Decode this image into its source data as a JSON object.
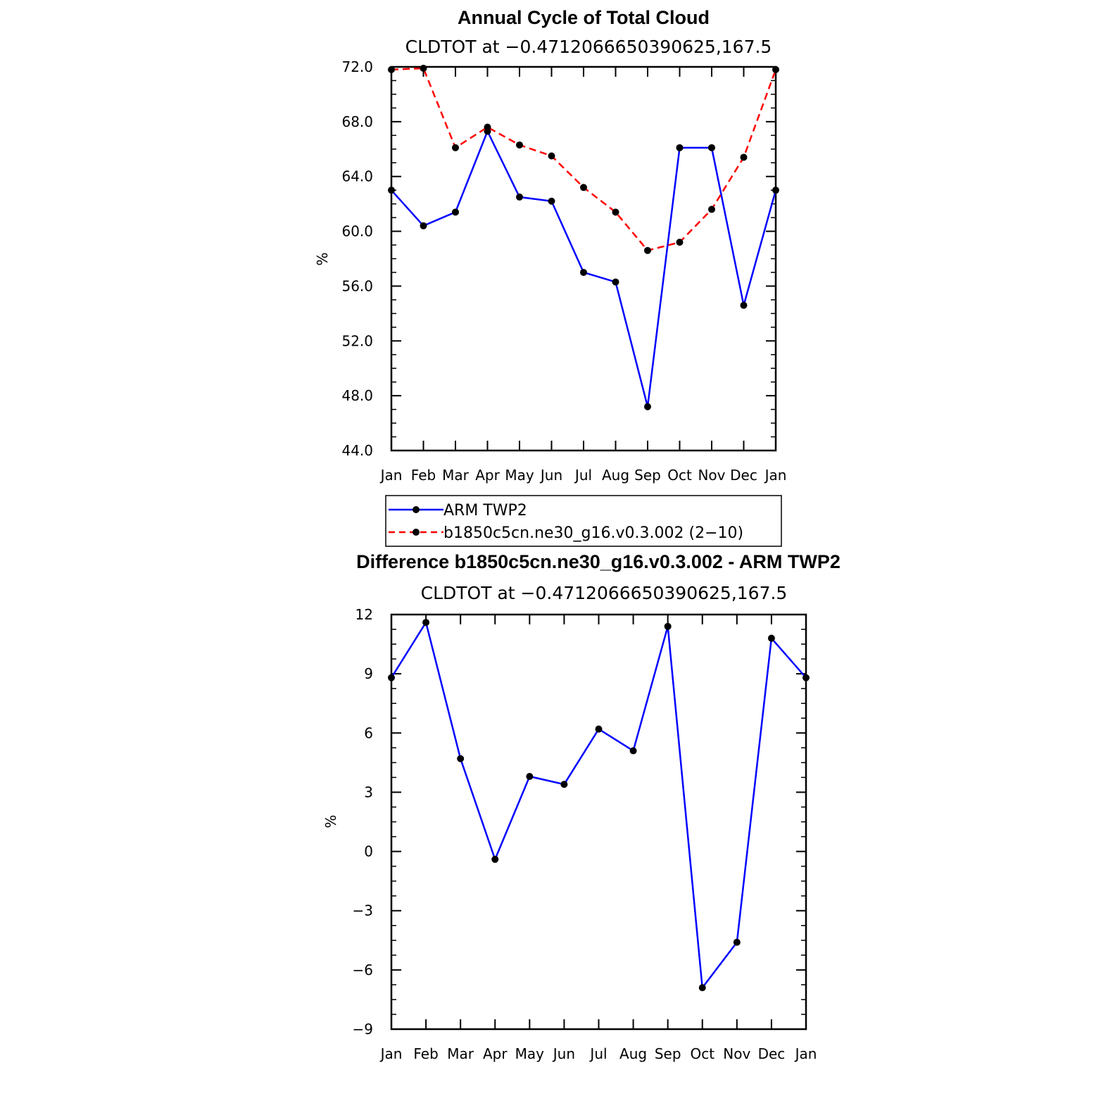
{
  "chart_data": [
    {
      "type": "line",
      "title": "Annual Cycle of Total Cloud",
      "subtitle": "CLDTOT at −0.4712066650390625,167.5",
      "ylabel": "%",
      "xlabel": "",
      "categories": [
        "Jan",
        "Feb",
        "Mar",
        "Apr",
        "May",
        "Jun",
        "Jul",
        "Aug",
        "Sep",
        "Oct",
        "Nov",
        "Dec",
        "Jan"
      ],
      "ylim": [
        44,
        72
      ],
      "yticks": [
        44,
        48,
        52,
        56,
        60,
        64,
        68,
        72
      ],
      "ytick_labels": [
        "44.0",
        "48.0",
        "52.0",
        "56.0",
        "60.0",
        "64.0",
        "68.0",
        "72.0"
      ],
      "grid": false,
      "legend": "below",
      "series": [
        {
          "name": "ARM TWP2",
          "color": "#0000ff",
          "dash": "solid",
          "values": [
            63.0,
            60.4,
            61.4,
            67.3,
            62.5,
            62.2,
            57.0,
            56.3,
            47.2,
            66.1,
            66.1,
            54.6,
            63.0
          ]
        },
        {
          "name": "b1850c5cn.ne30_g16.v0.3.002 (2−10)",
          "color": "#ff0000",
          "dash": "dashed",
          "values": [
            71.8,
            71.9,
            66.1,
            67.6,
            66.3,
            65.5,
            63.2,
            61.4,
            58.6,
            59.2,
            61.6,
            65.4,
            71.8
          ]
        }
      ]
    },
    {
      "type": "line",
      "title": "Difference b1850c5cn.ne30_g16.v0.3.002 - ARM TWP2",
      "subtitle": "CLDTOT at −0.4712066650390625,167.5",
      "ylabel": "%",
      "xlabel": "",
      "categories": [
        "Jan",
        "Feb",
        "Mar",
        "Apr",
        "May",
        "Jun",
        "Jul",
        "Aug",
        "Sep",
        "Oct",
        "Nov",
        "Dec",
        "Jan"
      ],
      "ylim": [
        -9,
        12
      ],
      "yticks": [
        -9,
        -6,
        -3,
        0,
        3,
        6,
        9,
        12
      ],
      "ytick_labels": [
        "−9",
        "−6",
        "−3",
        "0",
        "3",
        "6",
        "9",
        "12"
      ],
      "grid": false,
      "series": [
        {
          "color": "#0000ff",
          "dash": "solid",
          "values": [
            8.8,
            11.6,
            4.7,
            -0.4,
            3.8,
            3.4,
            6.2,
            5.1,
            11.4,
            -6.9,
            -4.6,
            10.8,
            8.8
          ]
        }
      ]
    }
  ]
}
